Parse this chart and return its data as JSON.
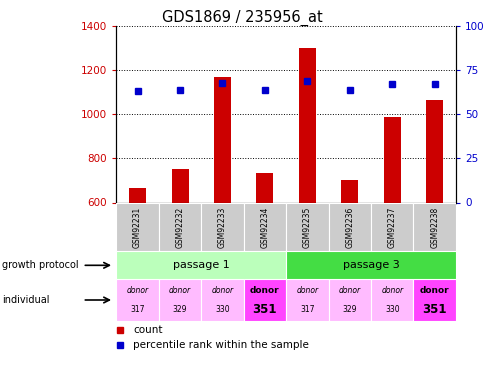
{
  "title": "GDS1869 / 235956_at",
  "samples": [
    "GSM92231",
    "GSM92232",
    "GSM92233",
    "GSM92234",
    "GSM92235",
    "GSM92236",
    "GSM92237",
    "GSM92238"
  ],
  "count_values": [
    665,
    750,
    1170,
    735,
    1300,
    700,
    990,
    1065
  ],
  "percentile_values": [
    63,
    64,
    68,
    64,
    69,
    64,
    67,
    67
  ],
  "ylim_left": [
    600,
    1400
  ],
  "ylim_right": [
    0,
    100
  ],
  "yticks_left": [
    600,
    800,
    1000,
    1200,
    1400
  ],
  "yticks_right": [
    0,
    25,
    50,
    75,
    100
  ],
  "bar_color": "#cc0000",
  "dot_color": "#0000cc",
  "bar_width": 0.4,
  "growth_color_1": "#bbffbb",
  "growth_color_2": "#44dd44",
  "individual_colors": [
    "#ffbbff",
    "#ffbbff",
    "#ffbbff",
    "#ff44ff",
    "#ffbbff",
    "#ffbbff",
    "#ffbbff",
    "#ff44ff"
  ],
  "legend_count_color": "#cc0000",
  "legend_dot_color": "#0000cc",
  "left_label_color": "#cc0000",
  "right_label_color": "#0000cc",
  "sample_bg_color": "#cccccc",
  "donor_labels_top": [
    "donor",
    "donor",
    "donor",
    "donor",
    "donor",
    "donor",
    "donor",
    "donor"
  ],
  "donor_labels_bottom": [
    "317",
    "329",
    "330",
    "351",
    "317",
    "329",
    "330",
    "351"
  ],
  "donor_bold": [
    false,
    false,
    false,
    true,
    false,
    false,
    false,
    true
  ]
}
